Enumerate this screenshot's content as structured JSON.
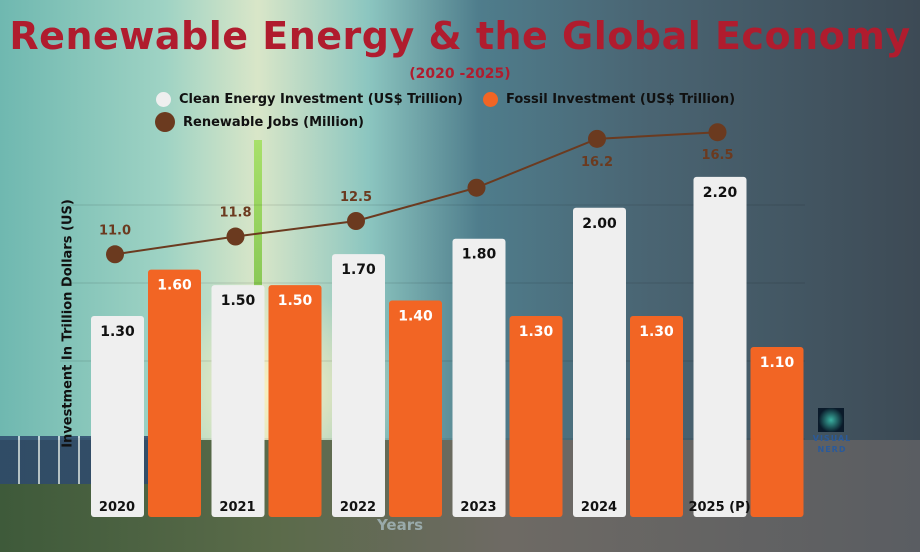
{
  "chart_data": {
    "type": "bar+line",
    "title": "Renewable Energy & the Global Economy",
    "subtitle": "(2020 -2025)",
    "xlabel": "Years",
    "ylabel": "Investment In Trillion Dollars (US)",
    "categories": [
      "2020",
      "2021",
      "2022",
      "2023",
      "2024",
      "2025 (P)"
    ],
    "series": [
      {
        "name": "Clean Energy Investment (US$ Trillion)",
        "type": "bar",
        "color": "#efefef",
        "values": [
          1.3,
          1.5,
          1.7,
          1.8,
          2.0,
          2.2
        ],
        "labels": [
          "1.30",
          "1.50",
          "1.70",
          "1.80",
          "2.00",
          "2.20"
        ]
      },
      {
        "name": "Fossil Investment (US$ Trillion)",
        "type": "bar",
        "color": "#f26524",
        "values": [
          1.6,
          1.5,
          1.4,
          1.3,
          1.3,
          1.1
        ],
        "labels": [
          "1.60",
          "1.50",
          "1.40",
          "1.30",
          "1.30",
          "1.10"
        ]
      },
      {
        "name": "Renewable Jobs (Million)",
        "type": "line",
        "color": "#6b3a1f",
        "values": [
          11.0,
          11.8,
          12.5,
          14.0,
          16.2,
          16.5
        ],
        "labels": [
          "11.0",
          "11.8",
          "12.5",
          "",
          "16.2",
          "16.5"
        ]
      }
    ],
    "legend": "top",
    "grid": true
  },
  "watermark": "VISUAL NERD"
}
